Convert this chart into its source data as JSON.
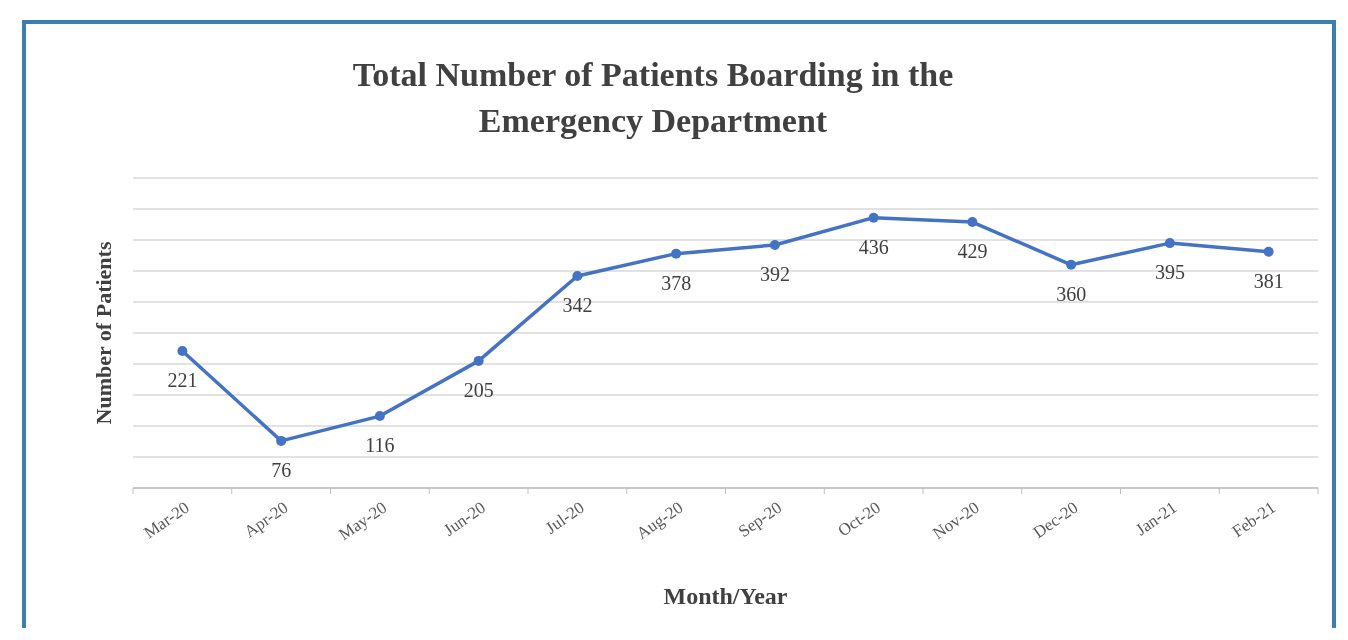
{
  "chart_data": {
    "type": "line",
    "title": "Total Number of Patients Boarding in the Emergency Department",
    "xlabel": "Month/Year",
    "ylabel": "Number of Patients",
    "categories": [
      "Mar-20",
      "Apr-20",
      "May-20",
      "Jun-20",
      "Jul-20",
      "Aug-20",
      "Sep-20",
      "Oct-20",
      "Nov-20",
      "Dec-20",
      "Jan-21",
      "Feb-21"
    ],
    "series": [
      {
        "color": "#4472c4",
        "values": [
          221,
          76,
          116,
          205,
          342,
          378,
          392,
          436,
          429,
          360,
          395,
          381
        ]
      }
    ],
    "ylim": [
      0,
      500
    ],
    "yticks": [
      {
        "value": 0,
        "label": null
      },
      {
        "value": 50,
        "label": null
      },
      {
        "value": 100,
        "label": null
      },
      {
        "value": 150,
        "label": null
      },
      {
        "value": 200,
        "label": null
      },
      {
        "value": 250,
        "label": null
      },
      {
        "value": 300,
        "label": null
      },
      {
        "value": 350,
        "label": null
      },
      {
        "value": 400,
        "label": null
      },
      {
        "value": 450,
        "label": null
      },
      {
        "value": 500,
        "label": null
      }
    ],
    "tick_labels": "x",
    "grid": "y",
    "marker": "circle",
    "line_style": "solid",
    "data_labels": true
  }
}
